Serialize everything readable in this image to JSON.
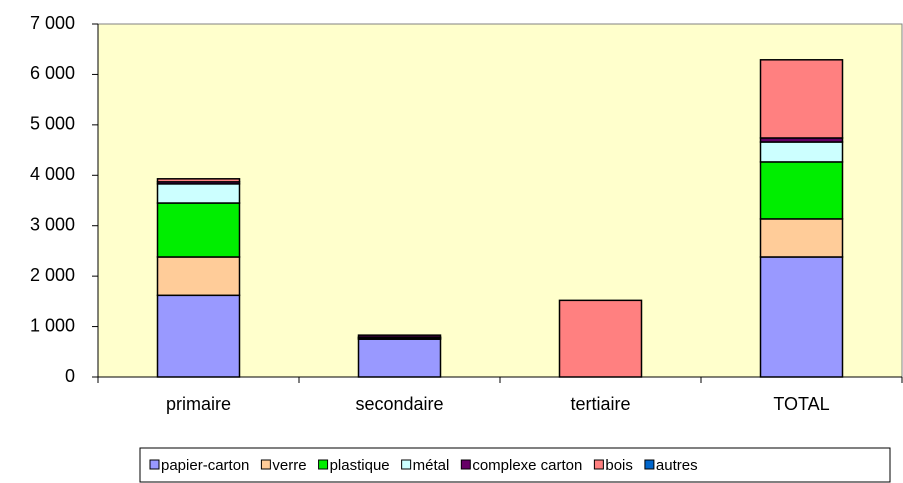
{
  "chart_data": {
    "type": "bar",
    "stacked": true,
    "categories": [
      "primaire",
      "secondaire",
      "tertiaire",
      "TOTAL"
    ],
    "series": [
      {
        "name": "papier-carton",
        "color": "#9999ff",
        "values": [
          1620,
          750,
          0,
          2380
        ]
      },
      {
        "name": "verre",
        "color": "#ffcc99",
        "values": [
          760,
          10,
          0,
          755
        ]
      },
      {
        "name": "plastique",
        "color": "#00ee00",
        "values": [
          1070,
          20,
          0,
          1130
        ]
      },
      {
        "name": "métal",
        "color": "#ccffff",
        "values": [
          380,
          10,
          0,
          395
        ]
      },
      {
        "name": "complexe carton",
        "color": "#660066",
        "values": [
          40,
          40,
          0,
          80
        ]
      },
      {
        "name": "bois",
        "color": "#ff8080",
        "values": [
          60,
          0,
          1520,
          1550
        ]
      },
      {
        "name": "autres",
        "color": "#0066cc",
        "values": [
          0,
          0,
          0,
          0
        ]
      }
    ],
    "ylim": [
      0,
      7000
    ],
    "yticks": [
      0,
      {
        "value": 1000,
        "label": "1 000"
      },
      {
        "value": 2000,
        "label": "2 000"
      },
      {
        "value": 3000,
        "label": "3 000"
      },
      {
        "value": 4000,
        "label": "4 000"
      },
      {
        "value": 5000,
        "label": "5 000"
      },
      {
        "value": 6000,
        "label": "6 000"
      },
      {
        "value": 7000,
        "label": "7 000"
      }
    ],
    "grid": false,
    "legend": "bottom",
    "plot_background": "#ffffcc"
  }
}
